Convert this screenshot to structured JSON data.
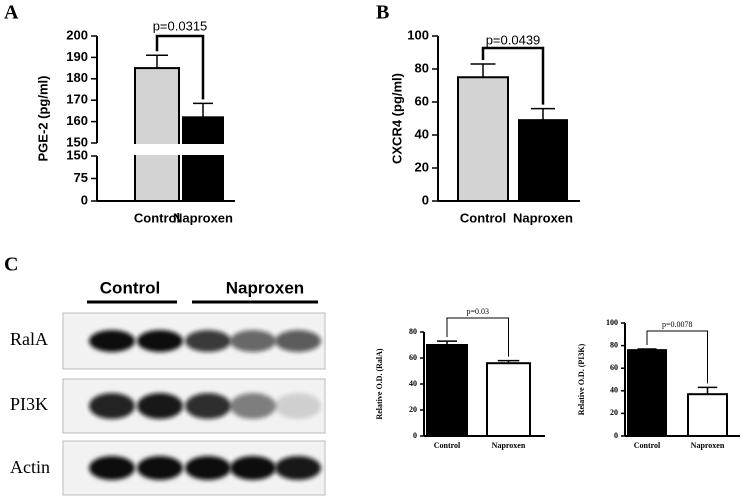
{
  "panels": [
    "A",
    "B",
    "C"
  ],
  "blot": {
    "groups": [
      "Control",
      "Naproxen"
    ],
    "rows": [
      "RalA",
      "PI3K",
      "Actin"
    ]
  },
  "chart_data": [
    {
      "type": "bar",
      "y_label": "PGE-2 (pg/ml)",
      "annotation": "p=0.0315",
      "categories": [
        "Control",
        "Naproxen"
      ],
      "values": [
        185,
        162
      ],
      "errors": [
        6,
        6.5
      ],
      "colors": [
        "#d3d3d3",
        "#000000"
      ],
      "axis_segments": [
        {
          "ylim": [
            0,
            150
          ],
          "yticks": [
            0,
            75,
            150
          ]
        },
        {
          "ylim": [
            150,
            200
          ],
          "yticks": [
            150,
            160,
            170,
            180,
            190,
            200
          ]
        }
      ]
    },
    {
      "type": "bar",
      "y_label": "CXCR4 (pg/ml)",
      "annotation": "p=0.0439",
      "categories": [
        "Control",
        "Naproxen"
      ],
      "values": [
        75,
        49
      ],
      "errors": [
        8,
        7
      ],
      "colors": [
        "#d3d3d3",
        "#000000"
      ],
      "ylim": [
        0,
        100
      ],
      "yticks": [
        0,
        20,
        40,
        60,
        80,
        100
      ]
    },
    {
      "type": "bar",
      "y_label": "Relative O.D. (RalA)",
      "annotation": "p=0.03",
      "categories": [
        "Control",
        "Naproxen"
      ],
      "values": [
        70,
        56
      ],
      "errors": [
        3,
        2
      ],
      "colors": [
        "#000000",
        "#ffffff"
      ],
      "ylim": [
        0,
        80
      ],
      "yticks": [
        0,
        20,
        40,
        60,
        80
      ]
    },
    {
      "type": "bar",
      "y_label": "Relative O.D. (PI3K)",
      "annotation": "p=0.0078",
      "categories": [
        "Control",
        "Naproxen"
      ],
      "values": [
        76,
        37
      ],
      "errors": [
        1,
        6
      ],
      "colors": [
        "#000000",
        "#ffffff"
      ],
      "ylim": [
        0,
        100
      ],
      "yticks": [
        0,
        20,
        40,
        60,
        80,
        100
      ]
    }
  ]
}
